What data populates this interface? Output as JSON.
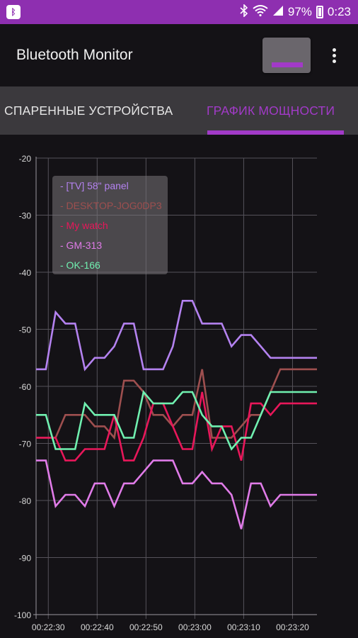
{
  "status_bar": {
    "battery": "97%",
    "time": "0:23",
    "icons": [
      "app-notification-icon",
      "bluetooth-icon",
      "wifi-icon",
      "signal-icon",
      "battery-icon"
    ]
  },
  "app_bar": {
    "title": "Bluetooth Monitor"
  },
  "tabs": [
    {
      "label": "СПАРЕННЫЕ УСТРОЙСТВА",
      "selected": false
    },
    {
      "label": "ГРАФИК МОЩНОСТИ",
      "selected": true
    }
  ],
  "colors": {
    "accent": "#a23ac8",
    "status_bar": "#8e2fb0",
    "background": "#141216"
  },
  "chart_data": {
    "type": "line",
    "x_labels": [
      "00:22:30",
      "00:22:40",
      "00:22:50",
      "00:23:00",
      "00:23:10",
      "00:23:20"
    ],
    "x_tick_seconds": [
      30,
      40,
      50,
      60,
      70,
      80
    ],
    "x_range": [
      27.5,
      85
    ],
    "ylim": [
      -100,
      -20
    ],
    "y_ticks": [
      -20,
      -30,
      -40,
      -50,
      -60,
      -70,
      -80,
      -90,
      -100
    ],
    "grid": true,
    "legend_position": "top-left",
    "series": [
      {
        "name": "[TV] 58\" panel",
        "color": "#b482f0",
        "x": [
          27.5,
          29.5,
          31.5,
          33.5,
          35.5,
          37.5,
          39.5,
          41.5,
          43.5,
          45.5,
          47.5,
          49.5,
          51.5,
          53.5,
          55.5,
          57.5,
          59.5,
          61.5,
          63.5,
          65.5,
          67.5,
          69.5,
          71.5,
          73.5,
          75.5,
          77.5,
          79.5,
          81.5,
          83.5,
          85
        ],
        "values": [
          -57,
          -57,
          -47,
          -49,
          -49,
          -57,
          -55,
          -55,
          -53,
          -49,
          -49,
          -57,
          -57,
          -57,
          -53,
          -45,
          -45,
          -49,
          -49,
          -49,
          -53,
          -51,
          -51,
          -53,
          -55,
          -55,
          -55,
          -55,
          -55,
          -55
        ]
      },
      {
        "name": "DESKTOP-JOG0DP3",
        "color": "#9e4f4f",
        "x": [
          27.5,
          29.5,
          31.5,
          33.5,
          35.5,
          37.5,
          39.5,
          41.5,
          43.5,
          45.5,
          47.5,
          49.5,
          51.5,
          53.5,
          55.5,
          57.5,
          59.5,
          61.5,
          63.5,
          65.5,
          67.5,
          69.5,
          71.5,
          73.5,
          75.5,
          77.5,
          79.5,
          81.5,
          83.5,
          85
        ],
        "values": [
          -69,
          -69,
          -69,
          -65,
          -65,
          -65,
          -67,
          -67,
          -69,
          -59,
          -59,
          -61,
          -65,
          -65,
          -67,
          -65,
          -65,
          -57,
          -69,
          -69,
          -69,
          -67,
          -65,
          -65,
          -61,
          -57,
          -57,
          -57,
          -57,
          -57
        ]
      },
      {
        "name": "My watch",
        "color": "#e8175a",
        "x": [
          27.5,
          29.5,
          31.5,
          33.5,
          35.5,
          37.5,
          39.5,
          41.5,
          43.5,
          45.5,
          47.5,
          49.5,
          51.5,
          53.5,
          55.5,
          57.5,
          59.5,
          61.5,
          63.5,
          65.5,
          67.5,
          69.5,
          71.5,
          73.5,
          75.5,
          77.5,
          79.5,
          81.5,
          83.5,
          85
        ],
        "values": [
          -69,
          -69,
          -69,
          -73,
          -73,
          -71,
          -71,
          -71,
          -65,
          -73,
          -73,
          -69,
          -63,
          -63,
          -67,
          -71,
          -71,
          -61,
          -71,
          -67,
          -67,
          -73,
          -63,
          -63,
          -65,
          -63,
          -63,
          -63,
          -63,
          -63
        ]
      },
      {
        "name": "GM-313",
        "color": "#e07be8",
        "x": [
          27.5,
          29.5,
          31.5,
          33.5,
          35.5,
          37.5,
          39.5,
          41.5,
          43.5,
          45.5,
          47.5,
          49.5,
          51.5,
          53.5,
          55.5,
          57.5,
          59.5,
          61.5,
          63.5,
          65.5,
          67.5,
          69.5,
          71.5,
          73.5,
          75.5,
          77.5,
          79.5,
          81.5,
          83.5,
          85
        ],
        "values": [
          -73,
          -73,
          -81,
          -79,
          -79,
          -81,
          -77,
          -77,
          -81,
          -77,
          -77,
          -75,
          -73,
          -73,
          -73,
          -77,
          -77,
          -75,
          -77,
          -77,
          -79,
          -85,
          -77,
          -77,
          -81,
          -79,
          -79,
          -79,
          -79,
          -79
        ]
      },
      {
        "name": "OK-166",
        "color": "#70f0b0",
        "x": [
          27.5,
          29.5,
          31.5,
          33.5,
          35.5,
          37.5,
          39.5,
          41.5,
          43.5,
          45.5,
          47.5,
          49.5,
          51.5,
          53.5,
          55.5,
          57.5,
          59.5,
          61.5,
          63.5,
          65.5,
          67.5,
          69.5,
          71.5,
          73.5,
          75.5,
          77.5,
          79.5,
          81.5,
          83.5,
          85
        ],
        "values": [
          -65,
          -65,
          -71,
          -71,
          -71,
          -63,
          -65,
          -65,
          -65,
          -69,
          -69,
          -61,
          -63,
          -63,
          -63,
          -61,
          -61,
          -65,
          -67,
          -67,
          -71,
          -69,
          -69,
          -65,
          -61,
          -61,
          -61,
          -61,
          -61,
          -61
        ]
      }
    ]
  }
}
